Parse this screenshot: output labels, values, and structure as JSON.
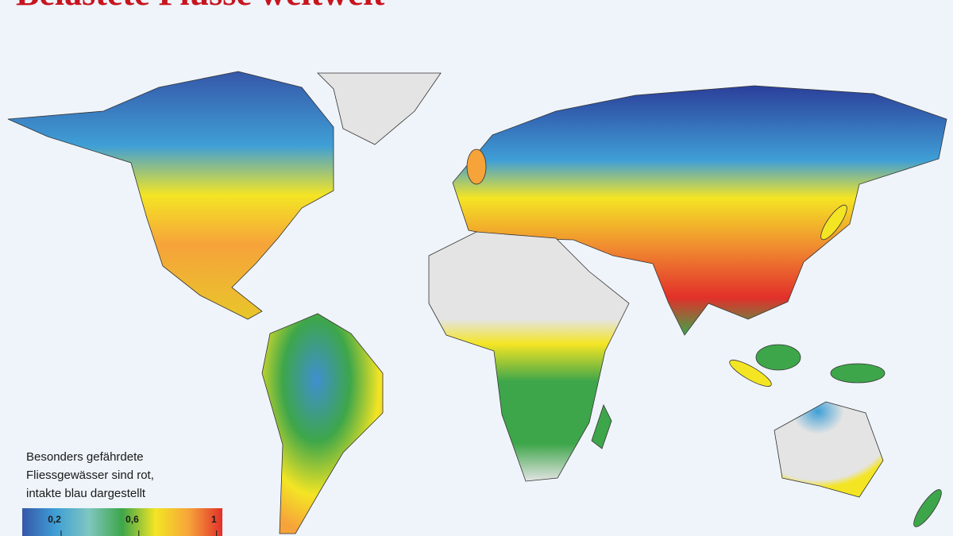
{
  "title": "Belastete Flüsse weltweit",
  "legend": {
    "lines": [
      "Besonders gefährdete",
      "Fliessgewässer sind rot,",
      "intakte blau dargestellt"
    ],
    "range": [
      0,
      1.03
    ],
    "ticks": [
      {
        "value": 0.2,
        "label": "0,2"
      },
      {
        "value": 0.6,
        "label": "0,6"
      },
      1
    ],
    "colors": [
      "#3557a8",
      "#3f9fd6",
      "#7fc6c0",
      "#3ea64a",
      "#f4e524",
      "#f6a33a",
      "#e2302a"
    ]
  }
}
